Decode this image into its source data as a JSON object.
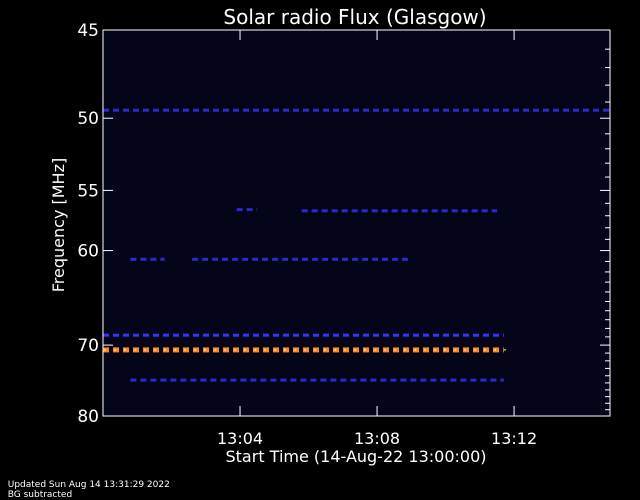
{
  "chart_data": {
    "type": "heatmap",
    "title": "Solar radio Flux (Glasgow)",
    "xlabel": "Start Time (14-Aug-22 13:00:00)",
    "ylabel": "Frequency [MHz]",
    "x_unit": "minutes after 13:00",
    "xlim": [
      0,
      14.8
    ],
    "ylim": [
      45,
      80
    ],
    "y_reversed": true,
    "x_ticks": [
      {
        "value": 4,
        "label": "13:04"
      },
      {
        "value": 8,
        "label": "13:08"
      },
      {
        "value": 12,
        "label": "13:12"
      }
    ],
    "y_ticks": [
      {
        "value": 45,
        "label": "45"
      },
      {
        "value": 50,
        "label": "50"
      },
      {
        "value": 55,
        "label": "55"
      },
      {
        "value": 60,
        "label": "60"
      },
      {
        "value": 70,
        "label": "70"
      },
      {
        "value": 80,
        "label": "80"
      }
    ],
    "bands": [
      {
        "freq": 49.5,
        "x_start": 0.0,
        "x_end": 14.8,
        "intensity": "low"
      },
      {
        "freq": 60.8,
        "x_start": 0.8,
        "x_end": 1.8,
        "intensity": "low"
      },
      {
        "freq": 60.8,
        "x_start": 2.6,
        "x_end": 8.9,
        "intensity": "low"
      },
      {
        "freq": 56.5,
        "x_start": 3.9,
        "x_end": 4.5,
        "intensity": "low"
      },
      {
        "freq": 56.6,
        "x_start": 5.8,
        "x_end": 11.5,
        "intensity": "low"
      },
      {
        "freq": 68.8,
        "x_start": 0.0,
        "x_end": 11.7,
        "intensity": "medium"
      },
      {
        "freq": 70.6,
        "x_start": 0.0,
        "x_end": 11.7,
        "intensity": "high"
      },
      {
        "freq": 74.6,
        "x_start": 0.8,
        "x_end": 11.7,
        "intensity": "low"
      }
    ],
    "colors": {
      "background": "#000000",
      "plot_background": "#05051a",
      "low": "#2a2ad0",
      "medium": "#3333ff",
      "high": "#ff8a1a",
      "high_core": "#ffffff"
    }
  },
  "footer": {
    "updated": "Updated Sun Aug 14 13:31:29 2022",
    "note": "BG subtracted"
  }
}
